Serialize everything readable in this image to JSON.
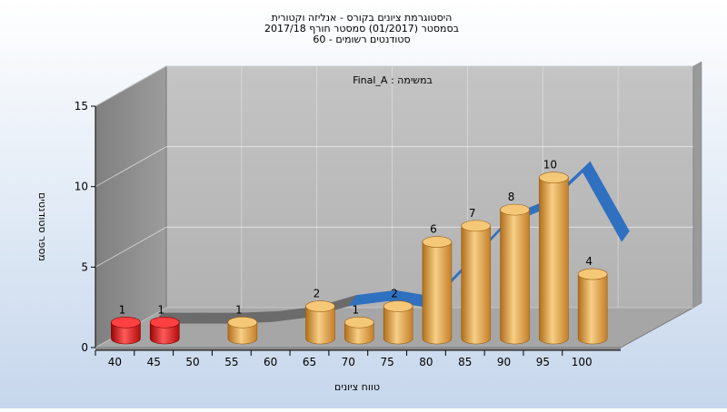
{
  "chart_data": {
    "type": "bar",
    "title_lines": [
      "היסטוגרמת ציונים בקורס - אנליזה וקטורית",
      "בסמסטר  (01/2017)  סמסטר חורף 2017/18",
      "סטודנטים רשומים - 60"
    ],
    "annotation": "Final_A : במשימה",
    "xlabel": "טווח ציונים",
    "ylabel": "מספר סטודנטים",
    "ylim": [
      0,
      15
    ],
    "y_ticks": [
      0,
      5,
      10,
      15
    ],
    "x_ticks": [
      "40",
      "45",
      "50",
      "55",
      "60",
      "65",
      "70",
      "75",
      "80",
      "85",
      "90",
      "95",
      "100"
    ],
    "bars": [
      {
        "bin": 0,
        "value": 1,
        "label": "1",
        "status": "fail"
      },
      {
        "bin": 1,
        "value": 1,
        "label": "1",
        "status": "fail"
      },
      {
        "bin": 3,
        "value": 1,
        "label": "1",
        "status": "pass"
      },
      {
        "bin": 5,
        "value": 2,
        "label": "2",
        "status": "pass"
      },
      {
        "bin": 6,
        "value": 1,
        "label": "1",
        "status": "pass"
      },
      {
        "bin": 7,
        "value": 2,
        "label": "2",
        "status": "pass"
      },
      {
        "bin": 8,
        "value": 6,
        "label": "6",
        "status": "pass"
      },
      {
        "bin": 9,
        "value": 7,
        "label": "7",
        "status": "pass"
      },
      {
        "bin": 10,
        "value": 8,
        "label": "8",
        "status": "pass"
      },
      {
        "bin": 11,
        "value": 10,
        "label": "10",
        "status": "pass"
      },
      {
        "bin": 12,
        "value": 4,
        "label": "4",
        "status": "pass"
      }
    ],
    "trend": [
      {
        "x": 0,
        "y": 0.5,
        "status": "fail"
      },
      {
        "x": 1,
        "y": 0.5,
        "status": "fail"
      },
      {
        "x": 2,
        "y": 0.5,
        "status": "fail"
      },
      {
        "x": 3,
        "y": 0.6,
        "status": "fail"
      },
      {
        "x": 4,
        "y": 0.9,
        "status": "fail"
      },
      {
        "x": 5,
        "y": 1.6,
        "status": "fail"
      },
      {
        "x": 6,
        "y": 1.9,
        "status": "pass"
      },
      {
        "x": 7,
        "y": 1.5,
        "status": "pass"
      },
      {
        "x": 8,
        "y": 4.0,
        "status": "pass"
      },
      {
        "x": 9,
        "y": 6.6,
        "status": "pass"
      },
      {
        "x": 10,
        "y": 7.6,
        "status": "pass"
      },
      {
        "x": 11,
        "y": 9.9,
        "status": "pass"
      },
      {
        "x": 12,
        "y": 5.6,
        "status": "pass"
      }
    ],
    "grid": true,
    "legend": "none",
    "colors": {
      "fail_bar": "#e01414",
      "pass_bar": "#e3a04a",
      "trend_fail": "#6b6b6b",
      "trend_pass": "#3070c0",
      "back_wall": "#b8b8b8",
      "side_wall": "#8e8e8e",
      "floor": "#a6a6a6"
    }
  }
}
